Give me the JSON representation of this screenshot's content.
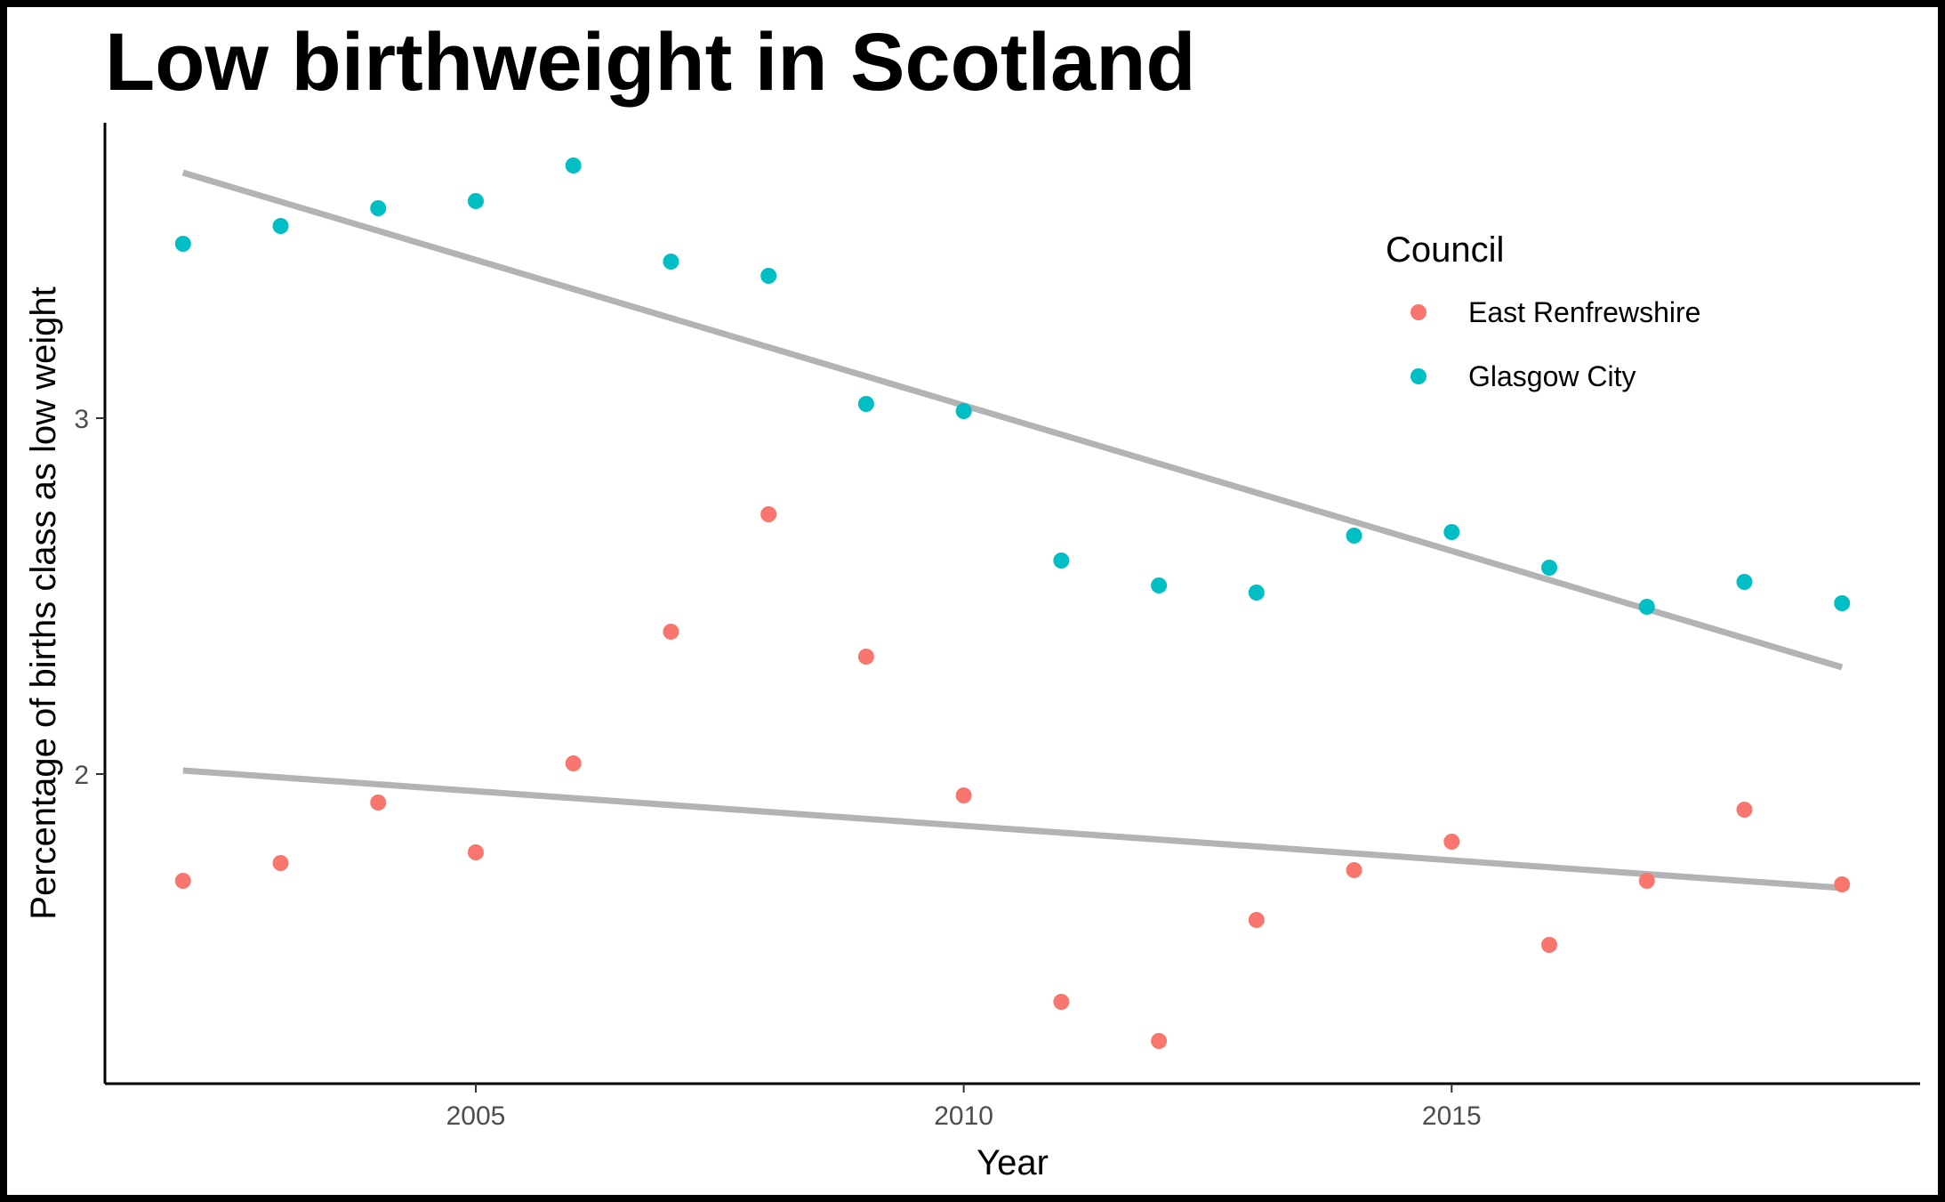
{
  "chart_data": {
    "type": "scatter",
    "title": "Low birthweight in Scotland",
    "xlabel": "Year",
    "ylabel": "Percentage of births class as low weight",
    "xlim": [
      2001.2,
      2019.8
    ],
    "ylim": [
      1.13,
      3.83
    ],
    "x_ticks": [
      2005,
      2010,
      2015
    ],
    "y_ticks": [
      2,
      3
    ],
    "grid": false,
    "legend": {
      "title": "Council",
      "position": "top-right"
    },
    "x": [
      2002,
      2003,
      2004,
      2005,
      2006,
      2007,
      2008,
      2009,
      2010,
      2011,
      2012,
      2013,
      2014,
      2015,
      2016,
      2017,
      2018,
      2019
    ],
    "series": [
      {
        "name": "East Renfrewshire",
        "color": "#F8766D",
        "values": [
          1.7,
          1.75,
          1.92,
          1.78,
          2.03,
          2.4,
          2.73,
          2.33,
          1.94,
          1.36,
          1.25,
          1.59,
          1.73,
          1.81,
          1.52,
          1.7,
          1.9,
          1.69
        ],
        "trend": [
          2.01,
          1.68
        ]
      },
      {
        "name": "Glasgow City",
        "color": "#00BFC4",
        "values": [
          3.49,
          3.54,
          3.59,
          3.61,
          3.71,
          3.44,
          3.4,
          3.04,
          3.02,
          2.6,
          2.53,
          2.51,
          2.67,
          2.68,
          2.58,
          2.47,
          2.54,
          2.48
        ],
        "trend": [
          3.69,
          2.3
        ]
      }
    ],
    "trend_color": "#B3B3B3"
  }
}
